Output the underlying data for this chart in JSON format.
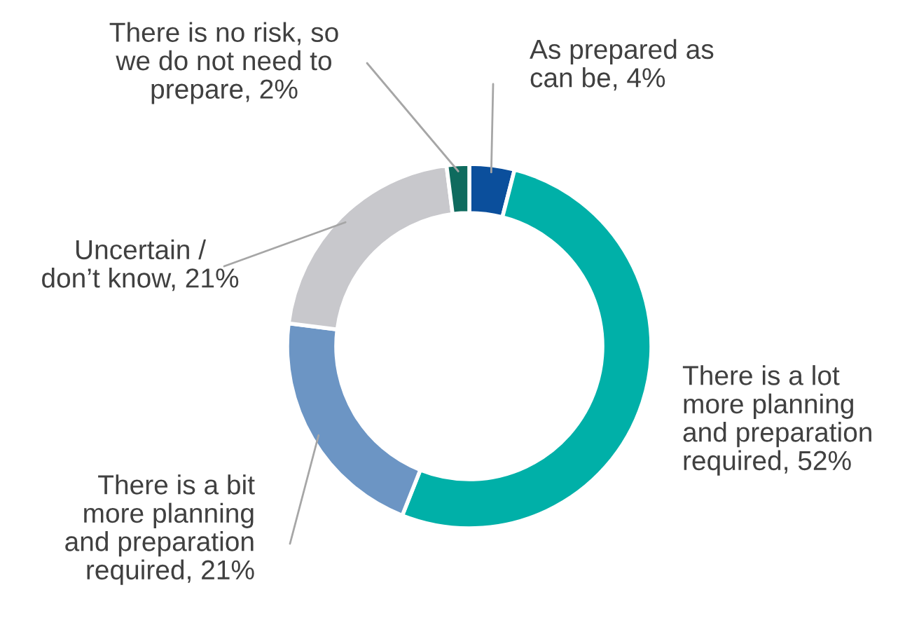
{
  "chart_data": {
    "type": "donut",
    "categories": [
      "As prepared as\ncan be",
      "There is a lot\nmore planning\nand preparation\nrequired",
      "There is a bit\nmore planning\nand preparation\nrequired",
      "Uncertain /\ndon’t know",
      "There is no risk, so\nwe do not need to\nprepare"
    ],
    "values": [
      4,
      52,
      21,
      21,
      2
    ],
    "value_labels": [
      "4%",
      "52%",
      "21%",
      "21%",
      "2%"
    ],
    "colors": [
      "#0b4f9c",
      "#00b0a8",
      "#6c95c4",
      "#c8c8cc",
      "#0f6b5e"
    ]
  }
}
